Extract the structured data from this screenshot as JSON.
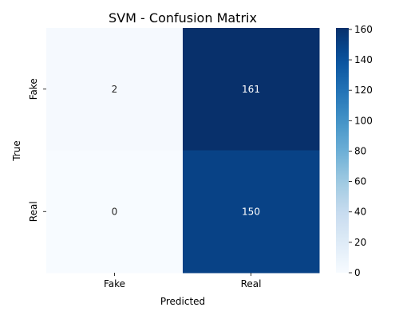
{
  "chart_data": {
    "type": "heatmap",
    "title": "SVM - Confusion Matrix",
    "xlabel": "Predicted",
    "ylabel": "True",
    "x_categories": [
      "Fake",
      "Real"
    ],
    "y_categories": [
      "Fake",
      "Real"
    ],
    "values": [
      [
        2,
        161
      ],
      [
        0,
        150
      ]
    ],
    "colormap": "Blues",
    "color_range": [
      0,
      161
    ],
    "colorbar_ticks": [
      0,
      20,
      40,
      60,
      80,
      100,
      120,
      140,
      160
    ],
    "colorbar_tick_labels": [
      "0",
      "20",
      "40",
      "60",
      "80",
      "100",
      "120",
      "140",
      "160"
    ],
    "grid": false,
    "annotation_colors": {
      "dark": "#262626",
      "light": "#ffffff"
    }
  }
}
